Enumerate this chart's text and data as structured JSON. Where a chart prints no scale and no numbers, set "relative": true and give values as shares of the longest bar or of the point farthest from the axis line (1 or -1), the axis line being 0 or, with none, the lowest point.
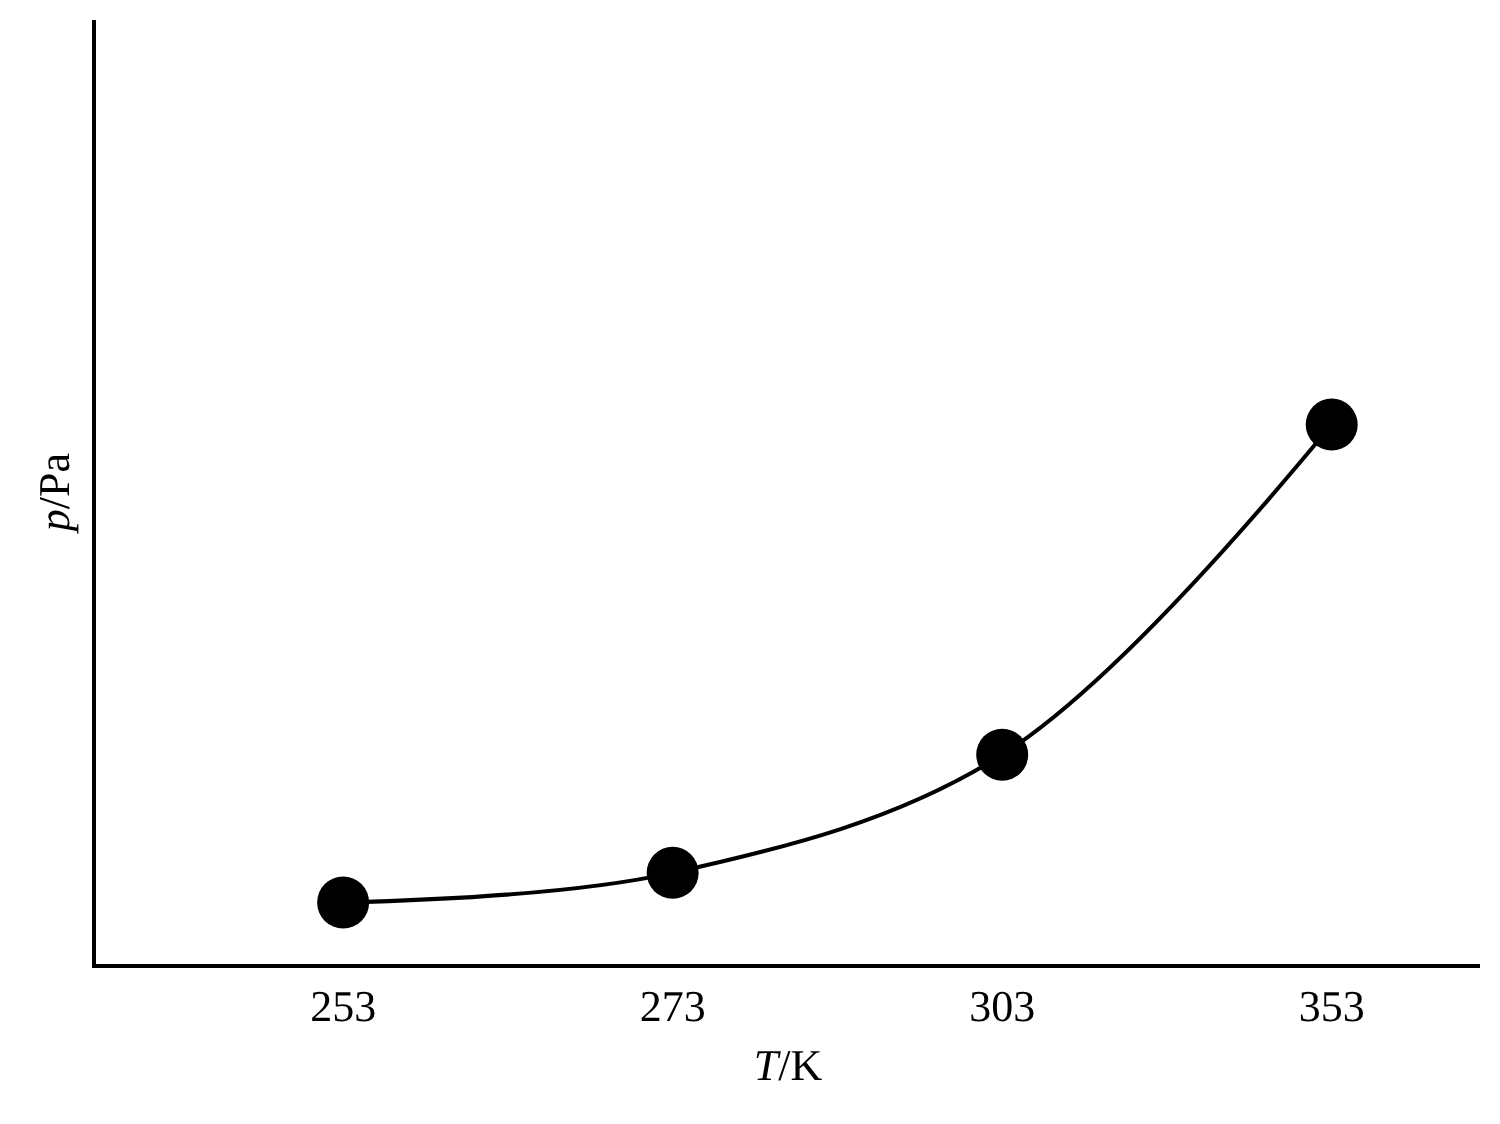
{
  "chart_data": {
    "type": "line",
    "xlabel": "T/K",
    "ylabel": "p/Pa",
    "categories": [
      "253",
      "273",
      "303",
      "353"
    ],
    "relative": true,
    "series": [
      {
        "color": "#000000",
        "values": [
          0.114,
          0.169,
          0.388,
          1
        ]
      }
    ],
    "marker": "circle",
    "line_style": "solid"
  }
}
